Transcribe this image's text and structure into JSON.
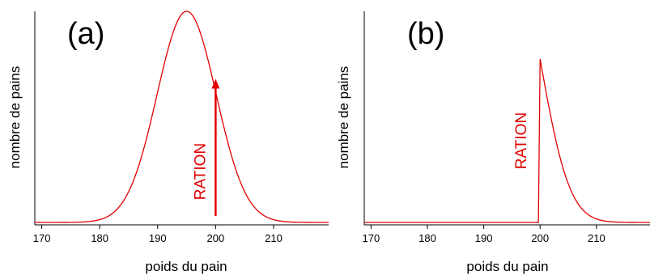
{
  "chart_data": [
    {
      "type": "line",
      "panel_label": "(a)",
      "title": "",
      "xlabel": "poids du pain",
      "ylabel": "nombre de pains",
      "xlim": [
        168.8,
        219.5
      ],
      "xticks": [
        170,
        180,
        190,
        200,
        210
      ],
      "y_ticks_shown": false,
      "grid": false,
      "series": [
        {
          "color": "#e00000",
          "distribution": "normal",
          "mean": 195,
          "sd": 5.1,
          "x_range": [
            168.8,
            219.5
          ]
        }
      ],
      "annotation": {
        "text": "RATION",
        "x": 200,
        "color": "#e00000",
        "arrow": "up",
        "y_from_fraction_of_peak": 0.03,
        "y_to_fraction_of_peak": 0.68
      }
    },
    {
      "type": "line",
      "panel_label": "(b)",
      "title": "",
      "xlabel": "poids du pain",
      "ylabel": "nombre de pains",
      "xlim": [
        168.8,
        219.5
      ],
      "xticks": [
        170,
        180,
        190,
        200,
        210
      ],
      "y_ticks_shown": false,
      "grid": false,
      "series": [
        {
          "color": "#e00000",
          "distribution": "truncated-normal",
          "mean": 195,
          "sd": 5.1,
          "truncate_below": 200,
          "scale_factor": 1.35,
          "x_range": [
            168.8,
            219.5
          ]
        }
      ],
      "annotation": {
        "text": "RATION",
        "x": 200,
        "color": "#e00000",
        "arrow": "none"
      }
    }
  ]
}
